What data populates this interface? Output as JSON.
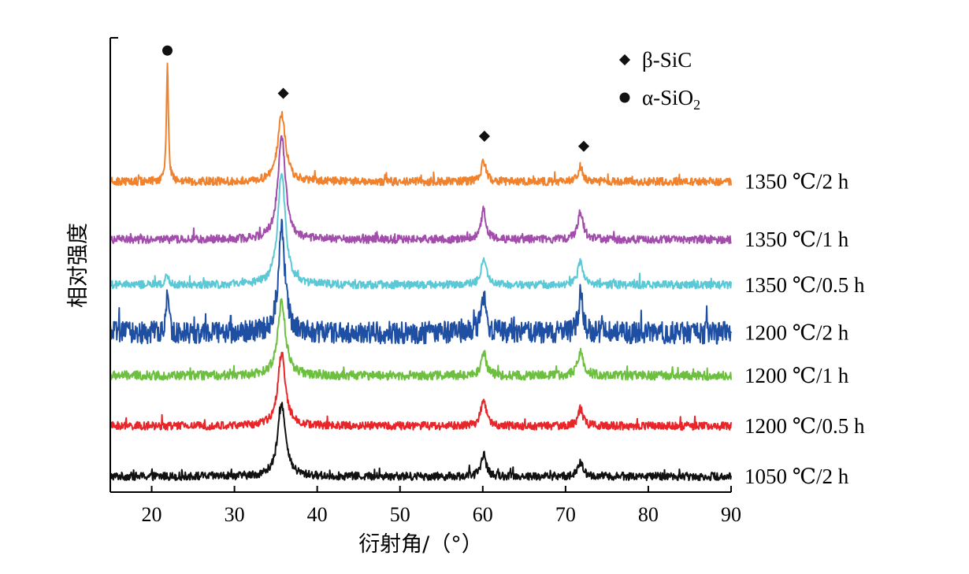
{
  "chart_data": {
    "type": "line",
    "xlabel": "衍射角/（°）",
    "ylabel": "相对强度",
    "xlim": [
      15,
      90
    ],
    "xticks": [
      20,
      30,
      40,
      50,
      60,
      70,
      80,
      90
    ],
    "y_ticks_shown": false,
    "grid": false,
    "legend": {
      "placement": "top-right",
      "entries": [
        {
          "marker": "diamond",
          "label": "β-SiC"
        },
        {
          "marker": "circle",
          "label": "α-SiO",
          "subscript": "2"
        }
      ]
    },
    "series": [
      {
        "name": "1050 ℃/2 h",
        "color": "#111111",
        "baseline": 0.0,
        "noise": 0.08,
        "peaks": [
          [
            35.7,
            1.45,
            0.55
          ],
          [
            60.1,
            0.45,
            0.35
          ],
          [
            71.8,
            0.28,
            0.35
          ]
        ],
        "markers": []
      },
      {
        "name": "1200 ℃/0.5 h",
        "color": "#e8262a",
        "baseline": 1.0,
        "noise": 0.08,
        "peaks": [
          [
            35.7,
            1.45,
            0.55
          ],
          [
            60.1,
            0.55,
            0.35
          ],
          [
            71.8,
            0.35,
            0.35
          ]
        ],
        "markers": []
      },
      {
        "name": "1200 ℃/1 h",
        "color": "#6cbf3f",
        "baseline": 2.0,
        "noise": 0.09,
        "peaks": [
          [
            35.7,
            1.5,
            0.55
          ],
          [
            60.1,
            0.48,
            0.35
          ],
          [
            71.8,
            0.45,
            0.45
          ]
        ],
        "markers": []
      },
      {
        "name": "1200 ℃/2 h",
        "color": "#1f4fa3",
        "baseline": 2.85,
        "noise": 0.22,
        "peaks": [
          [
            21.9,
            0.75,
            0.18
          ],
          [
            35.7,
            2.2,
            0.45
          ],
          [
            60.1,
            0.75,
            0.35
          ],
          [
            71.8,
            0.75,
            0.3
          ]
        ],
        "markers": []
      },
      {
        "name": "1350 ℃/0.5 h",
        "color": "#5bc8d6",
        "baseline": 3.8,
        "noise": 0.08,
        "peaks": [
          [
            21.9,
            0.2,
            0.25
          ],
          [
            35.7,
            2.25,
            0.55
          ],
          [
            60.1,
            0.55,
            0.35
          ],
          [
            71.8,
            0.5,
            0.35
          ]
        ],
        "markers": []
      },
      {
        "name": "1350 ℃/1 h",
        "color": "#a24dab",
        "baseline": 4.7,
        "noise": 0.08,
        "peaks": [
          [
            35.7,
            2.05,
            0.55
          ],
          [
            60.1,
            0.6,
            0.35
          ],
          [
            71.8,
            0.55,
            0.4
          ]
        ],
        "markers": []
      },
      {
        "name": "1350 ℃/2 h",
        "color": "#f0822d",
        "baseline": 5.85,
        "noise": 0.08,
        "peaks": [
          [
            21.9,
            2.35,
            0.14
          ],
          [
            35.7,
            1.35,
            0.55
          ],
          [
            60.1,
            0.4,
            0.35
          ],
          [
            71.8,
            0.3,
            0.35
          ]
        ],
        "markers": [
          {
            "x": 21.9,
            "type": "circle",
            "y": 8.45
          },
          {
            "x": 35.9,
            "type": "diamond",
            "y": 7.6
          },
          {
            "x": 60.2,
            "type": "diamond",
            "y": 6.75
          },
          {
            "x": 72.2,
            "type": "diamond",
            "y": 6.55
          }
        ]
      }
    ]
  }
}
